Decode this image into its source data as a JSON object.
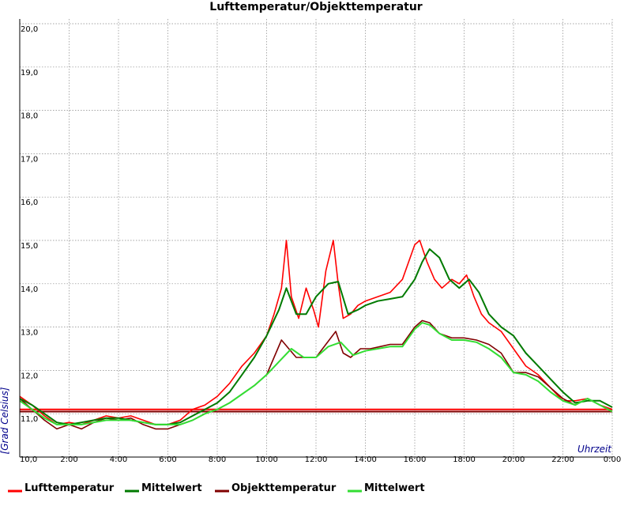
{
  "chart_data": {
    "type": "line",
    "title": "Lufttemperatur/Objekttemperatur",
    "xlabel": "Uhrzeit",
    "ylabel": "[Grad Celsius]",
    "xlim": [
      0,
      24
    ],
    "ylim": [
      10,
      20
    ],
    "grid": true,
    "legend": "bottom",
    "x_ticks": [
      {
        "x": 0,
        "label": "10,0"
      },
      {
        "x": 2,
        "label": "2:00"
      },
      {
        "x": 4,
        "label": "4:00"
      },
      {
        "x": 6,
        "label": "6:00"
      },
      {
        "x": 8,
        "label": "8:00"
      },
      {
        "x": 10,
        "label": "10:00"
      },
      {
        "x": 12,
        "label": "12:00"
      },
      {
        "x": 14,
        "label": "14:00"
      },
      {
        "x": 16,
        "label": "16:00"
      },
      {
        "x": 18,
        "label": "18:00"
      },
      {
        "x": 20,
        "label": "20:00"
      },
      {
        "x": 22,
        "label": "22:00"
      },
      {
        "x": 24,
        "label": "0:00"
      }
    ],
    "y_ticks": [
      {
        "y": 11,
        "label": "11,0"
      },
      {
        "y": 12,
        "label": "12,0"
      },
      {
        "y": 13,
        "label": "13,0"
      },
      {
        "y": 14,
        "label": "14,0"
      },
      {
        "y": 15,
        "label": "15,0"
      },
      {
        "y": 16,
        "label": "16,0"
      },
      {
        "y": 17,
        "label": "17,0"
      },
      {
        "y": 18,
        "label": "18,0"
      },
      {
        "y": 19,
        "label": "19,0"
      },
      {
        "y": 20,
        "label": "20,0"
      }
    ],
    "series": [
      {
        "name": "Lufttemperatur",
        "color": "#ff0000",
        "x": [
          0,
          0.5,
          1,
          1.5,
          2,
          2.5,
          3,
          3.5,
          4,
          4.5,
          5,
          5.5,
          6,
          6.5,
          7,
          7.5,
          8,
          8.5,
          9,
          9.5,
          10,
          10.3,
          10.6,
          10.8,
          11,
          11.3,
          11.6,
          11.9,
          12.1,
          12.4,
          12.7,
          12.9,
          13.1,
          13.4,
          13.7,
          14,
          14.5,
          15,
          15.5,
          16,
          16.2,
          16.5,
          16.8,
          17.1,
          17.5,
          17.8,
          18.1,
          18.4,
          18.7,
          19,
          19.5,
          20,
          20.5,
          21,
          21.5,
          22,
          22.5,
          23,
          23.5,
          24
        ],
        "y": [
          11.4,
          11.2,
          10.95,
          10.75,
          10.8,
          10.75,
          10.85,
          10.95,
          10.9,
          10.95,
          10.85,
          10.75,
          10.75,
          10.85,
          11.1,
          11.2,
          11.4,
          11.7,
          12.1,
          12.4,
          12.8,
          13.3,
          13.9,
          15.0,
          13.7,
          13.2,
          13.9,
          13.4,
          13.0,
          14.3,
          15.0,
          14.0,
          13.2,
          13.3,
          13.5,
          13.6,
          13.7,
          13.8,
          14.1,
          14.9,
          15.0,
          14.5,
          14.1,
          13.9,
          14.1,
          14.0,
          14.2,
          13.7,
          13.3,
          13.1,
          12.9,
          12.5,
          12.1,
          11.9,
          11.6,
          11.3,
          11.3,
          11.35,
          11.2,
          11.1
        ]
      },
      {
        "name": "Mittelwert",
        "color": "#007a00",
        "x": [
          0,
          0.5,
          1,
          1.5,
          2,
          2.5,
          3,
          3.5,
          4,
          4.5,
          5,
          5.5,
          6,
          6.5,
          7,
          7.5,
          8,
          8.5,
          9,
          9.5,
          10,
          10.5,
          10.8,
          11.2,
          11.6,
          12,
          12.5,
          12.9,
          13.3,
          13.7,
          14,
          14.5,
          15,
          15.5,
          16,
          16.3,
          16.6,
          17,
          17.4,
          17.8,
          18.2,
          18.6,
          19,
          19.5,
          20,
          20.5,
          21,
          21.5,
          22,
          22.5,
          23,
          23.5,
          24
        ],
        "y": [
          11.35,
          11.2,
          11.0,
          10.8,
          10.75,
          10.8,
          10.85,
          10.9,
          10.9,
          10.85,
          10.8,
          10.75,
          10.75,
          10.8,
          10.95,
          11.1,
          11.25,
          11.5,
          11.9,
          12.3,
          12.8,
          13.4,
          13.9,
          13.3,
          13.3,
          13.7,
          14.0,
          14.05,
          13.3,
          13.4,
          13.5,
          13.6,
          13.65,
          13.7,
          14.1,
          14.5,
          14.8,
          14.6,
          14.1,
          13.9,
          14.1,
          13.8,
          13.3,
          13.0,
          12.8,
          12.4,
          12.1,
          11.8,
          11.5,
          11.25,
          11.3,
          11.3,
          11.15
        ]
      },
      {
        "name": "Objekttemperatur",
        "color": "#800000",
        "x": [
          0,
          0.5,
          1,
          1.5,
          2,
          2.5,
          3,
          3.5,
          4,
          4.5,
          5,
          5.5,
          6,
          6.5,
          7,
          7.5,
          8,
          8.5,
          9,
          9.5,
          10,
          10.3,
          10.6,
          10.9,
          11.2,
          11.6,
          12,
          12.4,
          12.8,
          13.1,
          13.4,
          13.8,
          14.2,
          14.6,
          15,
          15.5,
          16,
          16.3,
          16.6,
          17,
          17.5,
          18,
          18.5,
          19,
          19.5,
          20,
          20.5,
          21,
          21.5,
          22,
          22.5,
          23,
          23.5,
          24
        ],
        "y": [
          11.35,
          11.1,
          10.85,
          10.65,
          10.75,
          10.65,
          10.8,
          10.9,
          10.85,
          10.9,
          10.75,
          10.65,
          10.65,
          10.75,
          10.85,
          11.0,
          11.1,
          11.25,
          11.45,
          11.65,
          11.9,
          12.3,
          12.7,
          12.5,
          12.3,
          12.3,
          12.3,
          12.6,
          12.9,
          12.4,
          12.3,
          12.5,
          12.5,
          12.55,
          12.6,
          12.6,
          13.0,
          13.15,
          13.1,
          12.85,
          12.75,
          12.75,
          12.7,
          12.6,
          12.4,
          11.95,
          11.95,
          11.85,
          11.6,
          11.35,
          11.2,
          11.35,
          11.2,
          11.05
        ]
      },
      {
        "name": "Mittelwert",
        "color": "#33dd33",
        "x": [
          0,
          0.5,
          1,
          1.5,
          2,
          2.5,
          3,
          3.5,
          4,
          4.5,
          5,
          5.5,
          6,
          6.5,
          7,
          7.5,
          8,
          8.5,
          9,
          9.5,
          10,
          10.5,
          11,
          11.5,
          12,
          12.5,
          13,
          13.5,
          14,
          14.5,
          15,
          15.5,
          16,
          16.3,
          16.6,
          17,
          17.5,
          18,
          18.5,
          19,
          19.5,
          20,
          20.5,
          21,
          21.5,
          22,
          22.5,
          23,
          23.5,
          24
        ],
        "y": [
          11.3,
          11.1,
          10.9,
          10.75,
          10.75,
          10.75,
          10.8,
          10.85,
          10.85,
          10.85,
          10.8,
          10.75,
          10.75,
          10.75,
          10.85,
          11.0,
          11.1,
          11.25,
          11.45,
          11.65,
          11.9,
          12.2,
          12.5,
          12.3,
          12.3,
          12.55,
          12.65,
          12.35,
          12.45,
          12.5,
          12.55,
          12.55,
          12.95,
          13.1,
          13.05,
          12.85,
          12.7,
          12.7,
          12.65,
          12.5,
          12.3,
          11.95,
          11.9,
          11.75,
          11.5,
          11.3,
          11.2,
          11.35,
          11.2,
          11.05
        ]
      }
    ],
    "reference_lines": [
      {
        "y": 11.1,
        "color": "#ff0000"
      },
      {
        "y": 11.05,
        "color": "#800000"
      }
    ]
  }
}
